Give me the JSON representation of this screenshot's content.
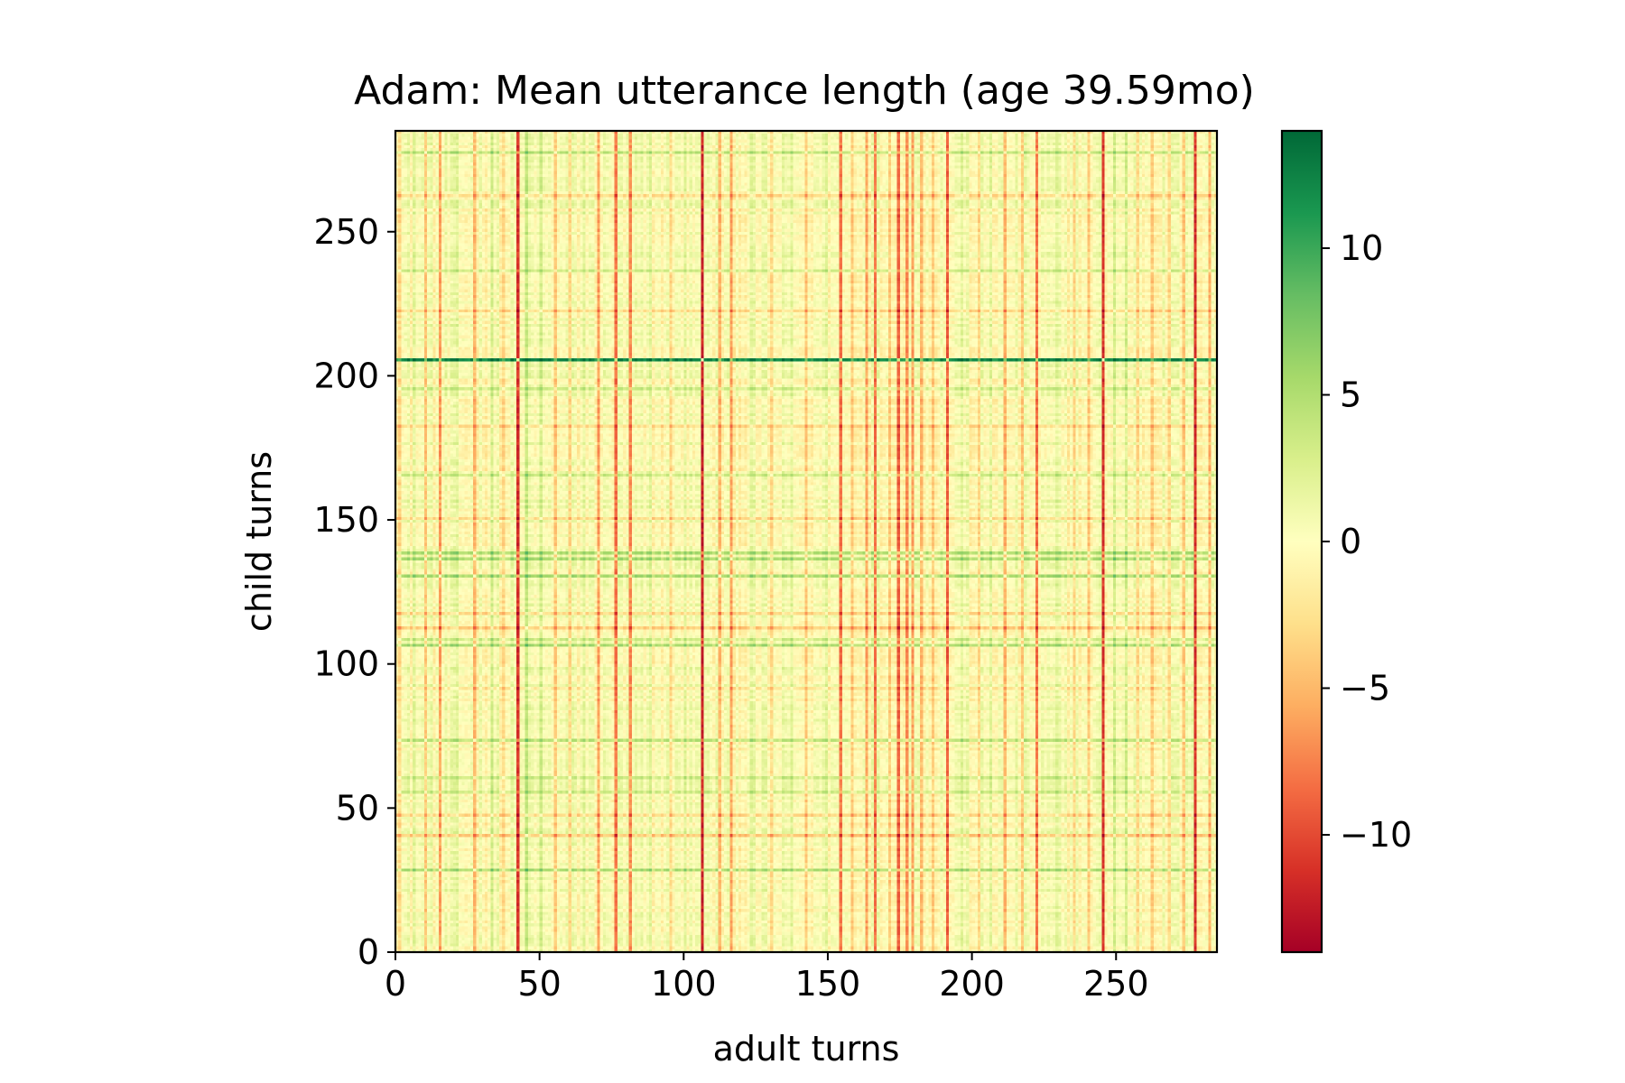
{
  "chart_data": {
    "type": "heatmap",
    "title": "Adam: Mean utterance length (age 39.59mo)",
    "xlabel": "adult turns",
    "ylabel": "child turns",
    "n_cols": 285,
    "n_rows": 285,
    "xlim": [
      0,
      285
    ],
    "ylim": [
      0,
      285
    ],
    "xticks": [
      0,
      50,
      100,
      150,
      200,
      250
    ],
    "yticks": [
      0,
      50,
      100,
      150,
      200,
      250
    ],
    "xtick_labels": [
      "0",
      "50",
      "100",
      "150",
      "200",
      "250"
    ],
    "ytick_labels": [
      "0",
      "50",
      "100",
      "150",
      "200",
      "250"
    ],
    "colormap": "RdYlGn",
    "colormap_stops": [
      "#a50026",
      "#d73027",
      "#f46d43",
      "#fdae61",
      "#fee08b",
      "#ffffbf",
      "#d9ef8b",
      "#a6d96a",
      "#66bd63",
      "#1a9850",
      "#006837"
    ],
    "vmin": -14,
    "vmax": 14,
    "colorbar_ticks": [
      10,
      5,
      0,
      -5,
      -10
    ],
    "colorbar_tick_labels": [
      "10",
      "5",
      "0",
      "−5",
      "−10"
    ],
    "column_effects": [
      {
        "index": 1,
        "value": -3
      },
      {
        "index": 6,
        "value": 2
      },
      {
        "index": 10,
        "value": -4
      },
      {
        "index": 15,
        "value": -6
      },
      {
        "index": 21,
        "value": 2
      },
      {
        "index": 27,
        "value": -5
      },
      {
        "index": 33,
        "value": 3
      },
      {
        "index": 37,
        "value": -3
      },
      {
        "index": 42,
        "value": -11
      },
      {
        "index": 45,
        "value": 4
      },
      {
        "index": 50,
        "value": 3
      },
      {
        "index": 55,
        "value": -4
      },
      {
        "index": 60,
        "value": -3
      },
      {
        "index": 65,
        "value": 2
      },
      {
        "index": 70,
        "value": -6
      },
      {
        "index": 76,
        "value": -8
      },
      {
        "index": 81,
        "value": -7
      },
      {
        "index": 88,
        "value": 2
      },
      {
        "index": 95,
        "value": -3
      },
      {
        "index": 100,
        "value": 2
      },
      {
        "index": 106,
        "value": -12
      },
      {
        "index": 112,
        "value": -5
      },
      {
        "index": 116,
        "value": -6
      },
      {
        "index": 123,
        "value": 2
      },
      {
        "index": 130,
        "value": -3
      },
      {
        "index": 137,
        "value": 2
      },
      {
        "index": 142,
        "value": -4
      },
      {
        "index": 149,
        "value": 2
      },
      {
        "index": 154,
        "value": -8
      },
      {
        "index": 158,
        "value": -4
      },
      {
        "index": 163,
        "value": -6
      },
      {
        "index": 166,
        "value": -8
      },
      {
        "index": 171,
        "value": -4
      },
      {
        "index": 174,
        "value": -9
      },
      {
        "index": 177,
        "value": -7
      },
      {
        "index": 179,
        "value": -6
      },
      {
        "index": 182,
        "value": -5
      },
      {
        "index": 186,
        "value": -4
      },
      {
        "index": 191,
        "value": -9
      },
      {
        "index": 196,
        "value": 2
      },
      {
        "index": 202,
        "value": -3
      },
      {
        "index": 206,
        "value": 2
      },
      {
        "index": 211,
        "value": -5
      },
      {
        "index": 217,
        "value": -4
      },
      {
        "index": 222,
        "value": -8
      },
      {
        "index": 229,
        "value": 2
      },
      {
        "index": 235,
        "value": -3
      },
      {
        "index": 240,
        "value": -4
      },
      {
        "index": 245,
        "value": -11
      },
      {
        "index": 249,
        "value": 3
      },
      {
        "index": 253,
        "value": 3
      },
      {
        "index": 257,
        "value": -3
      },
      {
        "index": 262,
        "value": -4
      },
      {
        "index": 268,
        "value": -3
      },
      {
        "index": 273,
        "value": -4
      },
      {
        "index": 277,
        "value": -11
      },
      {
        "index": 282,
        "value": -5
      }
    ],
    "row_effects": [
      {
        "index": 28,
        "value": 5
      },
      {
        "index": 40,
        "value": -4
      },
      {
        "index": 47,
        "value": -3
      },
      {
        "index": 55,
        "value": 3
      },
      {
        "index": 60,
        "value": 3
      },
      {
        "index": 73,
        "value": 4
      },
      {
        "index": 91,
        "value": -2
      },
      {
        "index": 106,
        "value": 5
      },
      {
        "index": 108,
        "value": 3
      },
      {
        "index": 112,
        "value": -4
      },
      {
        "index": 117,
        "value": -3
      },
      {
        "index": 130,
        "value": 5
      },
      {
        "index": 136,
        "value": 5
      },
      {
        "index": 138,
        "value": 5
      },
      {
        "index": 150,
        "value": -3
      },
      {
        "index": 165,
        "value": 3
      },
      {
        "index": 182,
        "value": -3
      },
      {
        "index": 195,
        "value": 3
      },
      {
        "index": 205,
        "value": 12
      },
      {
        "index": 222,
        "value": -3
      },
      {
        "index": 236,
        "value": 3
      },
      {
        "index": 262,
        "value": -3
      },
      {
        "index": 277,
        "value": 4
      }
    ]
  }
}
